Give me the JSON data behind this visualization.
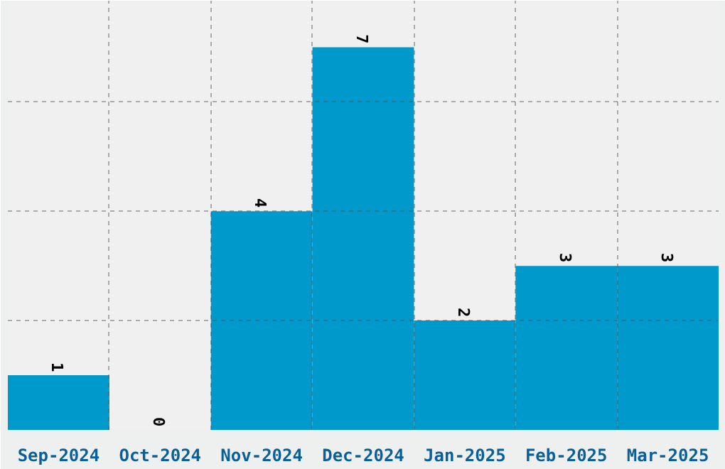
{
  "chart_data": {
    "type": "bar",
    "categories": [
      "Sep-2024",
      "Oct-2024",
      "Nov-2024",
      "Dec-2024",
      "Jan-2025",
      "Feb-2025",
      "Mar-2025"
    ],
    "values": [
      1,
      0,
      4,
      7,
      2,
      3,
      3
    ],
    "color": "#0099cc",
    "data_labels": true,
    "ylim": [
      0,
      7.85
    ],
    "yticks": [
      {
        "value": 2,
        "label": null
      },
      {
        "value": 4,
        "label": null
      },
      {
        "value": 6,
        "label": null
      }
    ],
    "tick_labels": "x",
    "grid": true
  }
}
